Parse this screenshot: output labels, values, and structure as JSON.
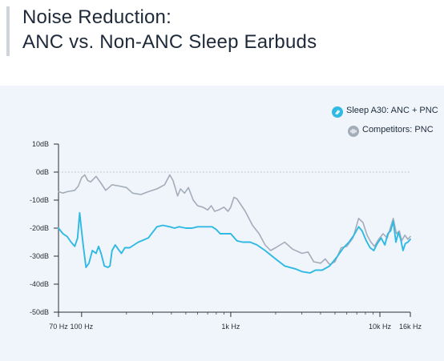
{
  "title_lines": [
    "Noise Reduction:",
    "ANC vs. Non-ANC Sleep Earbuds"
  ],
  "legend": [
    {
      "label": "Sleep A30: ANC + PNC",
      "icon": "sound-icon",
      "color": "#2fb9e3"
    },
    {
      "label": "Competitors: PNC",
      "icon": "wave-icon",
      "color": "#a3acb9"
    }
  ],
  "chart_data": {
    "type": "line",
    "xscale": "log",
    "xlim": [
      70,
      16000
    ],
    "ylim": [
      -50,
      10
    ],
    "y_ticks": [
      {
        "v": 10,
        "label": "10dB"
      },
      {
        "v": 0,
        "label": "0dB"
      },
      {
        "v": -10,
        "label": "-10dB"
      },
      {
        "v": -20,
        "label": "-20dB"
      },
      {
        "v": -30,
        "label": "-30dB"
      },
      {
        "v": -40,
        "label": "-40dB"
      },
      {
        "v": -50,
        "label": "-50dB"
      }
    ],
    "x_ticks": [
      {
        "v": 70,
        "label": "70 Hz"
      },
      {
        "v": 100,
        "label": "100 Hz"
      },
      {
        "v": 1000,
        "label": "1k Hz"
      },
      {
        "v": 10000,
        "label": "10k Hz"
      },
      {
        "v": 16000,
        "label": "16k Hz"
      }
    ],
    "zero_line": 0,
    "legend_position": "top-right",
    "series": [
      {
        "name": "Competitors: PNC",
        "color": "#a3acb9",
        "points": [
          [
            70,
            -7
          ],
          [
            75,
            -7.5
          ],
          [
            80,
            -7
          ],
          [
            90,
            -6.5
          ],
          [
            95,
            -5
          ],
          [
            100,
            -2
          ],
          [
            105,
            -1
          ],
          [
            110,
            -3
          ],
          [
            115,
            -3.5
          ],
          [
            125,
            -1.5
          ],
          [
            135,
            -4
          ],
          [
            145,
            -6.5
          ],
          [
            160,
            -4.5
          ],
          [
            180,
            -5
          ],
          [
            200,
            -5.5
          ],
          [
            220,
            -7.5
          ],
          [
            250,
            -8
          ],
          [
            280,
            -7
          ],
          [
            320,
            -6
          ],
          [
            360,
            -4.5
          ],
          [
            390,
            -1
          ],
          [
            410,
            -3
          ],
          [
            440,
            -8.5
          ],
          [
            460,
            -6
          ],
          [
            490,
            -7.5
          ],
          [
            520,
            -5.5
          ],
          [
            560,
            -10
          ],
          [
            600,
            -12
          ],
          [
            650,
            -12.5
          ],
          [
            700,
            -13.5
          ],
          [
            740,
            -12
          ],
          [
            780,
            -14
          ],
          [
            830,
            -13.5
          ],
          [
            900,
            -12.5
          ],
          [
            960,
            -14
          ],
          [
            1000,
            -12.5
          ],
          [
            1050,
            -9
          ],
          [
            1100,
            -9.5
          ],
          [
            1250,
            -14
          ],
          [
            1400,
            -19
          ],
          [
            1550,
            -22
          ],
          [
            1700,
            -26
          ],
          [
            1850,
            -28
          ],
          [
            2000,
            -27
          ],
          [
            2300,
            -25
          ],
          [
            2600,
            -27.5
          ],
          [
            3000,
            -29
          ],
          [
            3300,
            -28.5
          ],
          [
            3600,
            -32
          ],
          [
            4000,
            -32.5
          ],
          [
            4300,
            -31
          ],
          [
            4600,
            -33
          ],
          [
            5000,
            -32
          ],
          [
            5500,
            -27
          ],
          [
            6000,
            -26.5
          ],
          [
            6600,
            -23.5
          ],
          [
            7200,
            -16.5
          ],
          [
            7700,
            -18
          ],
          [
            8200,
            -22.5
          ],
          [
            8700,
            -25
          ],
          [
            9200,
            -26.5
          ],
          [
            9800,
            -24
          ],
          [
            10500,
            -22
          ],
          [
            11200,
            -23.5
          ],
          [
            11800,
            -19.5
          ],
          [
            12300,
            -16.5
          ],
          [
            12900,
            -22
          ],
          [
            13500,
            -21
          ],
          [
            14000,
            -24.5
          ],
          [
            14700,
            -22.5
          ],
          [
            15400,
            -24
          ],
          [
            16000,
            -23
          ]
        ]
      },
      {
        "name": "Sleep A30: ANC + PNC",
        "color": "#2fb9e3",
        "points": [
          [
            70,
            -20
          ],
          [
            75,
            -22
          ],
          [
            80,
            -23
          ],
          [
            85,
            -25
          ],
          [
            90,
            -26.5
          ],
          [
            94,
            -23.5
          ],
          [
            97,
            -14.5
          ],
          [
            100,
            -21
          ],
          [
            103,
            -27
          ],
          [
            107,
            -34
          ],
          [
            112,
            -32.5
          ],
          [
            118,
            -28
          ],
          [
            125,
            -29
          ],
          [
            130,
            -26.5
          ],
          [
            135,
            -29
          ],
          [
            142,
            -33.5
          ],
          [
            150,
            -34
          ],
          [
            155,
            -33.5
          ],
          [
            160,
            -28
          ],
          [
            168,
            -26
          ],
          [
            176,
            -27.5
          ],
          [
            185,
            -29
          ],
          [
            195,
            -27
          ],
          [
            210,
            -27
          ],
          [
            240,
            -25
          ],
          [
            280,
            -23.5
          ],
          [
            320,
            -19.5
          ],
          [
            350,
            -19
          ],
          [
            390,
            -19.5
          ],
          [
            420,
            -20
          ],
          [
            450,
            -19.5
          ],
          [
            500,
            -20
          ],
          [
            550,
            -20
          ],
          [
            600,
            -19.5
          ],
          [
            650,
            -19.5
          ],
          [
            700,
            -19.5
          ],
          [
            750,
            -19.5
          ],
          [
            800,
            -20.5
          ],
          [
            850,
            -22
          ],
          [
            900,
            -22
          ],
          [
            1000,
            -22
          ],
          [
            1100,
            -24.5
          ],
          [
            1200,
            -25
          ],
          [
            1350,
            -25
          ],
          [
            1500,
            -26
          ],
          [
            1700,
            -28
          ],
          [
            2000,
            -31
          ],
          [
            2300,
            -33.5
          ],
          [
            2700,
            -34.5
          ],
          [
            3000,
            -35.5
          ],
          [
            3400,
            -36
          ],
          [
            3700,
            -35
          ],
          [
            4100,
            -35
          ],
          [
            4600,
            -33.5
          ],
          [
            5200,
            -30
          ],
          [
            5700,
            -27
          ],
          [
            6200,
            -25
          ],
          [
            6700,
            -22.5
          ],
          [
            7200,
            -19.5
          ],
          [
            7600,
            -21
          ],
          [
            8100,
            -24.5
          ],
          [
            8600,
            -27
          ],
          [
            9100,
            -28
          ],
          [
            9600,
            -25.5
          ],
          [
            10200,
            -23.5
          ],
          [
            10800,
            -26
          ],
          [
            11300,
            -22
          ],
          [
            11800,
            -21
          ],
          [
            12300,
            -17.5
          ],
          [
            12800,
            -25
          ],
          [
            13300,
            -21.5
          ],
          [
            13800,
            -24
          ],
          [
            14300,
            -28
          ],
          [
            14800,
            -25.5
          ],
          [
            15400,
            -25
          ],
          [
            16000,
            -24
          ]
        ]
      }
    ]
  }
}
